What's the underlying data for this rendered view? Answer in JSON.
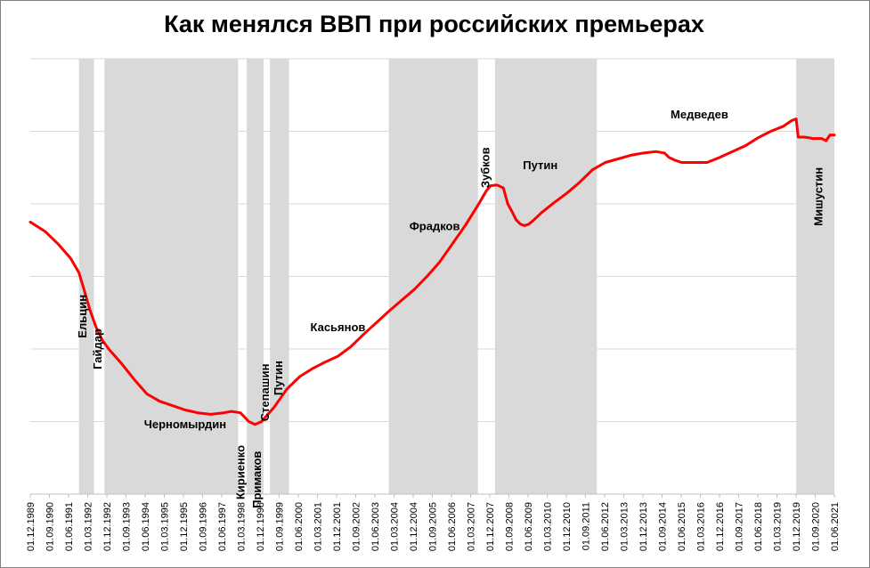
{
  "colors": {
    "line": "#ff0000",
    "shade": "#d9d9d9",
    "grid": "#d9d9d9",
    "axis": "#bfbfbf",
    "text": "#000000"
  },
  "chart_data": {
    "type": "line",
    "title": "Как менялся ВВП при российских премьерах",
    "xlabel": "",
    "ylabel": "",
    "y_tick_labels_shown": false,
    "grid": true,
    "legend": "none",
    "x_tick_labels": [
      "01.12.1989",
      "01.09.1990",
      "01.06.1991",
      "01.03.1992",
      "01.12.1992",
      "01.09.1993",
      "01.06.1994",
      "01.03.1995",
      "01.12.1995",
      "01.09.1996",
      "01.06.1997",
      "01.03.1998",
      "01.12.1998",
      "01.09.1999",
      "01.06.2000",
      "01.03.2001",
      "01.12.2001",
      "01.09.2002",
      "01.06.2003",
      "01.03.2004",
      "01.12.2004",
      "01.09.2005",
      "01.06.2006",
      "01.03.2007",
      "01.12.2007",
      "01.09.2008",
      "01.06.2009",
      "01.03.2010",
      "01.12.2010",
      "01.09.2011",
      "01.06.2012",
      "01.03.2013",
      "01.12.2013",
      "01.09.2014",
      "01.06.2015",
      "01.03.2016",
      "01.12.2016",
      "01.09.2017",
      "01.06.2018",
      "01.03.2019",
      "01.12.2019",
      "01.09.2020",
      "01.06.2021"
    ],
    "xlim": [
      1989.917,
      2021.5
    ],
    "ylim": [
      0,
      6
    ],
    "series": [
      {
        "x": [
          1989.917,
          1990.5,
          1991.0,
          1991.5,
          1991.83,
          1992.0,
          1992.25,
          1992.5,
          1992.75,
          1993.0,
          1993.5,
          1994.0,
          1994.5,
          1995.0,
          1995.5,
          1996.0,
          1996.5,
          1997.0,
          1997.5,
          1997.83,
          1998.17,
          1998.5,
          1998.75,
          1999.0,
          1999.5,
          2000.0,
          2000.5,
          2001.0,
          2001.5,
          2002.0,
          2002.5,
          2003.0,
          2003.5,
          2004.0,
          2004.5,
          2005.0,
          2005.5,
          2006.0,
          2006.5,
          2007.0,
          2007.5,
          2007.83,
          2008.0,
          2008.25,
          2008.5,
          2008.67,
          2008.83,
          2009.0,
          2009.17,
          2009.33,
          2009.5,
          2009.67,
          2010.0,
          2010.5,
          2011.0,
          2011.5,
          2012.0,
          2012.5,
          2013.0,
          2013.5,
          2014.0,
          2014.5,
          2014.83,
          2015.0,
          2015.25,
          2015.5,
          2016.0,
          2016.5,
          2017.0,
          2017.5,
          2018.0,
          2018.5,
          2019.0,
          2019.5,
          2019.83,
          2020.0,
          2020.08,
          2020.33,
          2020.67,
          2021.0,
          2021.17,
          2021.33,
          2021.5
        ],
        "y": [
          3.75,
          3.62,
          3.45,
          3.25,
          3.05,
          2.85,
          2.55,
          2.3,
          2.12,
          2.0,
          1.8,
          1.58,
          1.38,
          1.28,
          1.22,
          1.16,
          1.12,
          1.1,
          1.12,
          1.14,
          1.12,
          1.0,
          0.96,
          1.0,
          1.2,
          1.45,
          1.62,
          1.73,
          1.82,
          1.9,
          2.03,
          2.2,
          2.36,
          2.52,
          2.67,
          2.82,
          3.0,
          3.2,
          3.45,
          3.7,
          3.98,
          4.18,
          4.25,
          4.26,
          4.22,
          4.0,
          3.9,
          3.78,
          3.72,
          3.7,
          3.72,
          3.77,
          3.88,
          4.02,
          4.15,
          4.3,
          4.47,
          4.57,
          4.62,
          4.67,
          4.7,
          4.72,
          4.7,
          4.64,
          4.6,
          4.57,
          4.57,
          4.57,
          4.64,
          4.72,
          4.8,
          4.91,
          5.0,
          5.07,
          5.15,
          5.17,
          4.92,
          4.92,
          4.9,
          4.9,
          4.87,
          4.95,
          4.95
        ]
      }
    ],
    "shaded_periods": [
      {
        "start": 1991.83,
        "end": 1992.42
      },
      {
        "start": 1992.83,
        "end": 1998.08
      },
      {
        "start": 1998.42,
        "end": 1999.08
      },
      {
        "start": 1999.33,
        "end": 2000.08
      },
      {
        "start": 2004.0,
        "end": 2007.5
      },
      {
        "start": 2008.17,
        "end": 2012.17
      },
      {
        "start": 2020.0,
        "end": 2021.5
      }
    ],
    "annotations": [
      {
        "text": "Ельцин",
        "x": 1992.0,
        "y": 2.45,
        "rotated": true
      },
      {
        "text": "Гайдар",
        "x": 1992.6,
        "y": 2.0,
        "rotated": true
      },
      {
        "text": "Черномырдин",
        "x": 1996.0,
        "y": 0.95,
        "rotated": false
      },
      {
        "text": "Кириенко",
        "x": 1998.2,
        "y": 0.3,
        "rotated": true
      },
      {
        "text": "Примаков",
        "x": 1998.85,
        "y": 0.2,
        "rotated": true
      },
      {
        "text": "Степашин",
        "x": 1999.17,
        "y": 1.4,
        "rotated": true
      },
      {
        "text": "Путин",
        "x": 1999.7,
        "y": 1.6,
        "rotated": true
      },
      {
        "text": "Касьянов",
        "x": 2002.0,
        "y": 2.29,
        "rotated": false
      },
      {
        "text": "Фрадков",
        "x": 2005.8,
        "y": 3.68,
        "rotated": false
      },
      {
        "text": "Зубков",
        "x": 2007.83,
        "y": 4.5,
        "rotated": true
      },
      {
        "text": "Путин",
        "x": 2009.95,
        "y": 4.52,
        "rotated": false
      },
      {
        "text": "Медведев",
        "x": 2016.2,
        "y": 5.22,
        "rotated": false
      },
      {
        "text": "Мишустин",
        "x": 2020.9,
        "y": 4.1,
        "rotated": true
      }
    ]
  }
}
